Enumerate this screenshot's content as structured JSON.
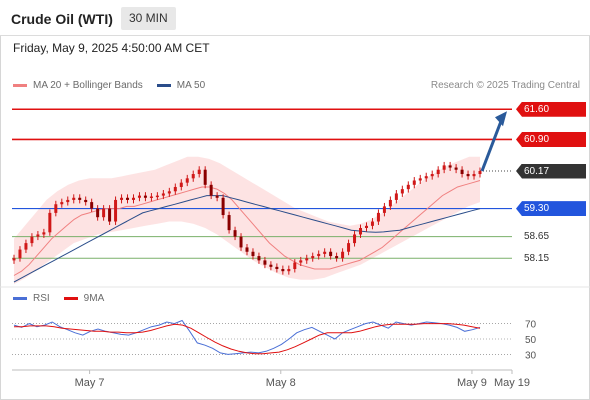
{
  "header": {
    "instrument": "Crude Oil (WTI)",
    "timeframe": "30 MIN",
    "datetime": "Friday, May 9, 2025 4:50:00 AM CET",
    "copyright": "Research © 2025 Trading Central"
  },
  "legend_main": [
    {
      "label": "MA 20 + Bollinger Bands",
      "color": "#f08080"
    },
    {
      "label": "MA 50",
      "color": "#2a4d8a"
    }
  ],
  "legend_rsi": [
    {
      "label": "RSI",
      "color": "#4a6fd6"
    },
    {
      "label": "9MA",
      "color": "#e01010"
    }
  ],
  "colors": {
    "resistance": "#e01010",
    "support": "#2255dd",
    "support_minor": "#7ab06a",
    "candle": "#d01818",
    "bollinger_fill": "#fde0e0",
    "ma20": "#f08080",
    "ma50": "#2a4d8a",
    "arrow": "#2a5a9a",
    "price_tag": "#333333"
  },
  "chart_data": {
    "type": "candlestick",
    "price_axis": {
      "min": 57.53,
      "max": 61.93
    },
    "time_axis": {
      "ticks": [
        {
          "label": "May 7",
          "index": 16
        },
        {
          "label": "May 8",
          "index": 48
        },
        {
          "label": "May 9",
          "index": 80
        },
        {
          "label": "May 19",
          "index": 92
        }
      ],
      "bar_count": 90
    },
    "levels": [
      {
        "value": 61.6,
        "label": "61.60",
        "kind": "resistance"
      },
      {
        "value": 60.9,
        "label": "60.90",
        "kind": "resistance"
      },
      {
        "value": 60.17,
        "label": "60.17",
        "kind": "price"
      },
      {
        "value": 59.3,
        "label": "59.30",
        "kind": "support"
      },
      {
        "value": 58.65,
        "label": "58.65",
        "kind": "support_minor"
      },
      {
        "value": 58.15,
        "label": "58.15",
        "kind": "support_minor"
      }
    ],
    "closes": [
      58.15,
      58.35,
      58.5,
      58.65,
      58.7,
      58.75,
      59.2,
      59.4,
      59.45,
      59.5,
      59.55,
      59.5,
      59.45,
      59.3,
      59.1,
      59.3,
      59.0,
      59.5,
      59.55,
      59.5,
      59.55,
      59.6,
      59.55,
      59.58,
      59.6,
      59.65,
      59.7,
      59.8,
      59.9,
      60.0,
      60.1,
      60.2,
      59.85,
      59.6,
      59.55,
      59.15,
      58.8,
      58.65,
      58.4,
      58.3,
      58.2,
      58.1,
      58.0,
      57.95,
      57.9,
      57.85,
      57.9,
      58.05,
      58.1,
      58.15,
      58.2,
      58.25,
      58.3,
      58.2,
      58.15,
      58.3,
      58.5,
      58.7,
      58.85,
      58.9,
      59.0,
      59.2,
      59.35,
      59.5,
      59.65,
      59.75,
      59.85,
      59.95,
      60.0,
      60.05,
      60.1,
      60.2,
      60.3,
      60.25,
      60.2,
      60.1,
      60.05,
      60.1,
      60.17
    ],
    "ma20": [
      57.75,
      57.85,
      58.0,
      58.2,
      58.4,
      58.6,
      58.75,
      58.9,
      59.05,
      59.15,
      59.2,
      59.25,
      59.3,
      59.3,
      59.3,
      59.35,
      59.35,
      59.4,
      59.45,
      59.5,
      59.55,
      59.6,
      59.65,
      59.7,
      59.75,
      59.8,
      59.8,
      59.75,
      59.65,
      59.5,
      59.3,
      59.1,
      58.9,
      58.7,
      58.5,
      58.35,
      58.2,
      58.1,
      58.0,
      57.95,
      57.9,
      57.9,
      57.9,
      57.95,
      58.0,
      58.05,
      58.1,
      58.2,
      58.3,
      58.4,
      58.55,
      58.7,
      58.85,
      59.0,
      59.15,
      59.3,
      59.45,
      59.6,
      59.7,
      59.8,
      59.85,
      59.9,
      59.95
    ],
    "ma50": [
      57.6,
      57.7,
      57.8,
      57.9,
      58.0,
      58.1,
      58.2,
      58.3,
      58.4,
      58.5,
      58.6,
      58.7,
      58.8,
      58.9,
      59.0,
      59.1,
      59.2,
      59.25,
      59.3,
      59.35,
      59.4,
      59.45,
      59.5,
      59.55,
      59.6,
      59.6,
      59.6,
      59.55,
      59.5,
      59.45,
      59.4,
      59.35,
      59.3,
      59.25,
      59.2,
      59.15,
      59.1,
      59.05,
      59.0,
      58.95,
      58.9,
      58.85,
      58.8,
      58.78,
      58.76,
      58.75,
      58.76,
      58.78,
      58.8,
      58.85,
      58.9,
      58.95,
      59.0,
      59.05,
      59.1,
      59.15,
      59.2,
      59.25,
      59.3
    ],
    "bollinger_upper": [
      58.6,
      58.9,
      59.2,
      59.5,
      59.7,
      59.85,
      59.95,
      60.0,
      60.0,
      60.0,
      60.05,
      60.1,
      60.15,
      60.2,
      60.3,
      60.4,
      60.5,
      60.5,
      60.45,
      60.35,
      60.2,
      60.05,
      59.9,
      59.75,
      59.6,
      59.45,
      59.3,
      59.2,
      59.1,
      59.0,
      58.95,
      58.9,
      58.95,
      59.05,
      59.2,
      59.4,
      59.6,
      59.8,
      60.0,
      60.15,
      60.3,
      60.4,
      60.5,
      60.5
    ],
    "bollinger_lower": [
      57.55,
      57.7,
      57.9,
      58.1,
      58.3,
      58.5,
      58.6,
      58.7,
      58.75,
      58.8,
      58.85,
      58.9,
      58.95,
      59.0,
      59.0,
      58.95,
      58.85,
      58.7,
      58.5,
      58.3,
      58.1,
      57.95,
      57.8,
      57.7,
      57.65,
      57.65,
      57.7,
      57.8,
      57.9,
      58.0,
      58.15,
      58.3,
      58.45,
      58.6,
      58.75,
      58.9,
      59.05,
      59.2,
      59.35,
      59.45
    ],
    "projection": {
      "from": 60.17,
      "to": 61.6
    },
    "rsi_panel": {
      "ticks": [
        70,
        50,
        30
      ],
      "rsi": [
        68,
        65,
        70,
        66,
        68,
        72,
        66,
        62,
        58,
        55,
        60,
        63,
        60,
        58,
        56,
        55,
        58,
        62,
        66,
        68,
        72,
        70,
        74,
        60,
        45,
        42,
        38,
        32,
        30,
        31,
        32,
        33,
        32,
        34,
        38,
        43,
        50,
        58,
        62,
        65,
        60,
        55,
        50,
        58,
        62,
        66,
        70,
        72,
        68,
        64,
        72,
        70,
        68,
        70,
        72,
        71,
        70,
        68,
        65,
        60,
        62,
        65
      ],
      "ma9": [
        66,
        66,
        67,
        67,
        67,
        66,
        64,
        63,
        62,
        61,
        60,
        60,
        59,
        59,
        58,
        58,
        59,
        61,
        64,
        67,
        69,
        68,
        64,
        58,
        52,
        46,
        41,
        37,
        34,
        32,
        31,
        31,
        32,
        33,
        36,
        40,
        45,
        50,
        55,
        58,
        58,
        58,
        58,
        60,
        63,
        66,
        68,
        69,
        69,
        69,
        69,
        70,
        70,
        70,
        70,
        69,
        68,
        66,
        64
      ]
    }
  }
}
